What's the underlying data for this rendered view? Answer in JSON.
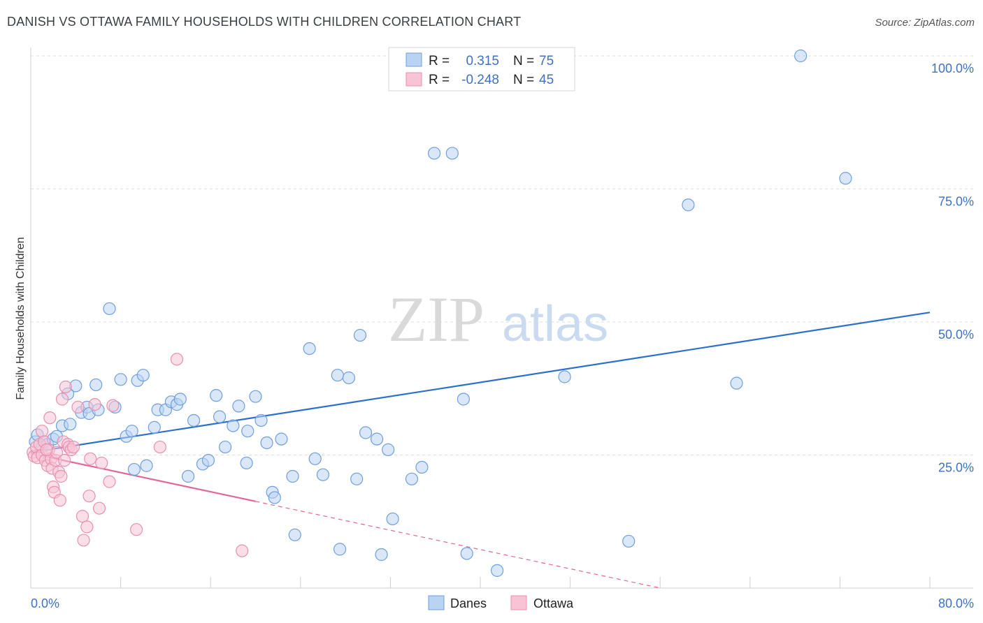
{
  "header": {
    "title": "DANISH VS OTTAWA FAMILY HOUSEHOLDS WITH CHILDREN CORRELATION CHART",
    "source": "Source: ZipAtlas.com"
  },
  "watermark": {
    "zip": "ZIP",
    "atlas": "atlas"
  },
  "legend": {
    "rows": [
      {
        "r_label": "R =",
        "r_value": "0.315",
        "n_label": "N =",
        "n_value": "75",
        "color": "#8fb8ec"
      },
      {
        "r_label": "R =",
        "r_value": "-0.248",
        "n_label": "N =",
        "n_value": "45",
        "color": "#f2a7c0"
      }
    ]
  },
  "colors": {
    "danes_fill": "#b9d3f2",
    "danes_stroke": "#6f9fdc",
    "danes_line": "#2c6fcc",
    "ottawa_fill": "#f8c4d5",
    "ottawa_stroke": "#e890b0",
    "ottawa_line": "#e0679a",
    "grid": "#dcdcdc",
    "axis_text": "#3d72c4"
  },
  "chart_data": {
    "type": "scatter",
    "title": "DANISH VS OTTAWA FAMILY HOUSEHOLDS WITH CHILDREN CORRELATION CHART",
    "xlabel": "",
    "ylabel": "Family Households with Children",
    "xlim": [
      0,
      80
    ],
    "ylim": [
      0,
      100
    ],
    "x_tick_labels": [
      "0.0%",
      "80.0%"
    ],
    "y_ticks": [
      25,
      50,
      75,
      100
    ],
    "y_tick_labels": [
      "25.0%",
      "50.0%",
      "75.0%",
      "100.0%"
    ],
    "grid": true,
    "bottom_legend": [
      "Danes",
      "Ottawa"
    ],
    "series": [
      {
        "name": "Danes",
        "r": 0.315,
        "n": 75,
        "trend": {
          "x": [
            0,
            80
          ],
          "y": [
            25.5,
            51.8
          ],
          "dashed_to": null
        },
        "points": [
          [
            0.4,
            27.5
          ],
          [
            0.6,
            28.8
          ],
          [
            1,
            26.5
          ],
          [
            1.2,
            27.5
          ],
          [
            1.5,
            27.0
          ],
          [
            2,
            28.0
          ],
          [
            2.3,
            28.5
          ],
          [
            2.8,
            30.5
          ],
          [
            3.3,
            36.5
          ],
          [
            3.5,
            30.8
          ],
          [
            4.0,
            38.0
          ],
          [
            4.5,
            33.0
          ],
          [
            5.0,
            34.0
          ],
          [
            5.2,
            32.8
          ],
          [
            5.8,
            38.2
          ],
          [
            6.0,
            33.5
          ],
          [
            7.0,
            52.5
          ],
          [
            7.5,
            34.0
          ],
          [
            8.0,
            39.2
          ],
          [
            8.5,
            28.5
          ],
          [
            9.0,
            29.5
          ],
          [
            9.2,
            22.3
          ],
          [
            9.5,
            39.0
          ],
          [
            10,
            40.0
          ],
          [
            10.3,
            23.0
          ],
          [
            11,
            30.2
          ],
          [
            11.3,
            33.5
          ],
          [
            12,
            33.5
          ],
          [
            12.5,
            35.0
          ],
          [
            13,
            34.5
          ],
          [
            13.3,
            35.5
          ],
          [
            14,
            21.0
          ],
          [
            14.5,
            31.5
          ],
          [
            15.3,
            23.3
          ],
          [
            15.8,
            24.0
          ],
          [
            16.5,
            36.2
          ],
          [
            16.8,
            32.2
          ],
          [
            17.3,
            26.5
          ],
          [
            18,
            30.5
          ],
          [
            18.5,
            34.2
          ],
          [
            19.2,
            23.5
          ],
          [
            19.3,
            29.5
          ],
          [
            20.0,
            36.0
          ],
          [
            20.5,
            31.5
          ],
          [
            21,
            27.3
          ],
          [
            21.5,
            18.0
          ],
          [
            21.7,
            17.0
          ],
          [
            22.3,
            28.0
          ],
          [
            23.3,
            21.0
          ],
          [
            23.5,
            10.0
          ],
          [
            24.8,
            45.0
          ],
          [
            25.3,
            24.3
          ],
          [
            26.0,
            21.3
          ],
          [
            27.3,
            40.0
          ],
          [
            27.5,
            7.3
          ],
          [
            28.3,
            39.5
          ],
          [
            29,
            20.5
          ],
          [
            29.3,
            47.5
          ],
          [
            29.8,
            29.2
          ],
          [
            30.8,
            28.0
          ],
          [
            31.2,
            6.3
          ],
          [
            31.8,
            26.0
          ],
          [
            32.2,
            13.0
          ],
          [
            33.9,
            20.5
          ],
          [
            34.8,
            22.7
          ],
          [
            35.9,
            81.7
          ],
          [
            37.5,
            81.7
          ],
          [
            38.5,
            35.5
          ],
          [
            38.8,
            6.5
          ],
          [
            41.5,
            3.3
          ],
          [
            47.5,
            39.7
          ],
          [
            53.2,
            8.8
          ],
          [
            58.5,
            72.0
          ],
          [
            62.8,
            38.5
          ],
          [
            68.5,
            100
          ],
          [
            72.5,
            77.0
          ]
        ]
      },
      {
        "name": "Ottawa",
        "r": -0.248,
        "n": 45,
        "trend": {
          "x": [
            0,
            20
          ],
          "y": [
            25.3,
            16.3
          ],
          "dashed_to": [
            56,
            0
          ]
        },
        "points": [
          [
            0.2,
            25.5
          ],
          [
            0.3,
            24.8
          ],
          [
            0.5,
            26.5
          ],
          [
            0.6,
            24.5
          ],
          [
            0.8,
            27.0
          ],
          [
            1.0,
            25.0
          ],
          [
            1.0,
            29.5
          ],
          [
            1.2,
            27.5
          ],
          [
            1.3,
            24.0
          ],
          [
            1.5,
            23.0
          ],
          [
            1.6,
            26.0
          ],
          [
            1.7,
            32.0
          ],
          [
            1.8,
            24.3
          ],
          [
            1.9,
            22.5
          ],
          [
            2.0,
            19.0
          ],
          [
            2.1,
            18.0
          ],
          [
            2.2,
            24.0
          ],
          [
            2.3,
            25.5
          ],
          [
            2.5,
            21.8
          ],
          [
            2.6,
            16.5
          ],
          [
            2.7,
            21.0
          ],
          [
            2.8,
            35.5
          ],
          [
            2.9,
            27.5
          ],
          [
            3.0,
            24.0
          ],
          [
            3.1,
            37.8
          ],
          [
            3.3,
            27.0
          ],
          [
            3.4,
            26.5
          ],
          [
            3.6,
            26.0
          ],
          [
            4.2,
            34.0
          ],
          [
            4.6,
            13.5
          ],
          [
            4.7,
            9.0
          ],
          [
            5.0,
            11.5
          ],
          [
            5.2,
            17.3
          ],
          [
            5.3,
            24.3
          ],
          [
            5.7,
            34.5
          ],
          [
            6.1,
            15.0
          ],
          [
            6.3,
            23.5
          ],
          [
            7.0,
            20.0
          ],
          [
            7.3,
            34.3
          ],
          [
            9.4,
            11.0
          ],
          [
            11.5,
            26.5
          ],
          [
            13.0,
            43.0
          ],
          [
            18.8,
            7.0
          ],
          [
            3.8,
            26.5
          ],
          [
            1.4,
            26.0
          ]
        ]
      }
    ]
  }
}
